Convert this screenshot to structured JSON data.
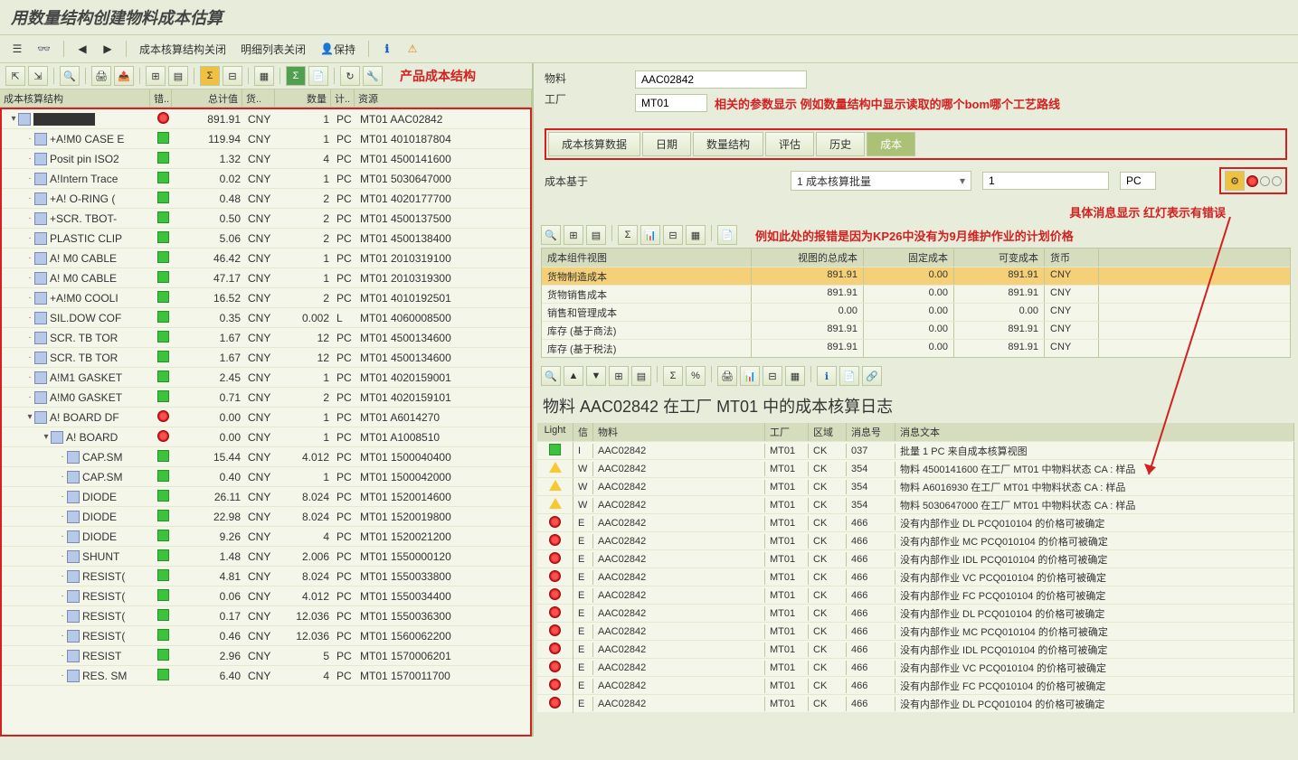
{
  "title": "用数量结构创建物料成本估算",
  "toolbar": {
    "close_struct": "成本核算结构关闭",
    "close_detail": "明细列表关闭",
    "hold": "保持"
  },
  "red_labels": {
    "product_struct": "产品成本结构",
    "param_note": "相关的参数显示 例如数量结构中显示读取的哪个bom哪个工艺路线",
    "msg_header": "具体消息显示 红灯表示有错误",
    "msg_detail": "例如此处的报错是因为KP26中没有为9月维护作业的计划价格"
  },
  "tree_columns": {
    "struct": "成本核算结构",
    "err": "错..",
    "total": "总计值",
    "curr": "货..",
    "qty": "数量",
    "unit": "计..",
    "res": "资源"
  },
  "tree_rows": [
    {
      "ind": 0,
      "exp": "▾",
      "name": "████████",
      "st": "red",
      "val": "891.91",
      "cur": "CNY",
      "qty": "1",
      "u": "PC",
      "res": "MT01 AAC02842"
    },
    {
      "ind": 1,
      "exp": "",
      "name": "+A!M0 CASE E",
      "st": "green",
      "val": "119.94",
      "cur": "CNY",
      "qty": "1",
      "u": "PC",
      "res": "MT01 4010187804"
    },
    {
      "ind": 1,
      "exp": "",
      "name": "Posit pin ISO2",
      "st": "green",
      "val": "1.32",
      "cur": "CNY",
      "qty": "4",
      "u": "PC",
      "res": "MT01 4500141600"
    },
    {
      "ind": 1,
      "exp": "",
      "name": "A!Intern Trace",
      "st": "green",
      "val": "0.02",
      "cur": "CNY",
      "qty": "1",
      "u": "PC",
      "res": "MT01 5030647000"
    },
    {
      "ind": 1,
      "exp": "",
      "name": "+A! O-RING (",
      "st": "green",
      "val": "0.48",
      "cur": "CNY",
      "qty": "2",
      "u": "PC",
      "res": "MT01 4020177700"
    },
    {
      "ind": 1,
      "exp": "",
      "name": "+SCR. TBOT-",
      "st": "green",
      "val": "0.50",
      "cur": "CNY",
      "qty": "2",
      "u": "PC",
      "res": "MT01 4500137500"
    },
    {
      "ind": 1,
      "exp": "",
      "name": "PLASTIC CLIP",
      "st": "green",
      "val": "5.06",
      "cur": "CNY",
      "qty": "2",
      "u": "PC",
      "res": "MT01 4500138400"
    },
    {
      "ind": 1,
      "exp": "",
      "name": "A! M0 CABLE",
      "st": "green",
      "val": "46.42",
      "cur": "CNY",
      "qty": "1",
      "u": "PC",
      "res": "MT01 2010319100"
    },
    {
      "ind": 1,
      "exp": "",
      "name": "A! M0 CABLE",
      "st": "green",
      "val": "47.17",
      "cur": "CNY",
      "qty": "1",
      "u": "PC",
      "res": "MT01 2010319300"
    },
    {
      "ind": 1,
      "exp": "",
      "name": "+A!M0 COOLI",
      "st": "green",
      "val": "16.52",
      "cur": "CNY",
      "qty": "2",
      "u": "PC",
      "res": "MT01 4010192501"
    },
    {
      "ind": 1,
      "exp": "",
      "name": "SIL.DOW COF",
      "st": "green",
      "val": "0.35",
      "cur": "CNY",
      "qty": "0.002",
      "u": "L",
      "res": "MT01 4060008500"
    },
    {
      "ind": 1,
      "exp": "",
      "name": "SCR. TB TOR",
      "st": "green",
      "val": "1.67",
      "cur": "CNY",
      "qty": "12",
      "u": "PC",
      "res": "MT01 4500134600"
    },
    {
      "ind": 1,
      "exp": "",
      "name": "SCR. TB TOR",
      "st": "green",
      "val": "1.67",
      "cur": "CNY",
      "qty": "12",
      "u": "PC",
      "res": "MT01 4500134600"
    },
    {
      "ind": 1,
      "exp": "",
      "name": "A!M1 GASKET",
      "st": "green",
      "val": "2.45",
      "cur": "CNY",
      "qty": "1",
      "u": "PC",
      "res": "MT01 4020159001"
    },
    {
      "ind": 1,
      "exp": "",
      "name": "A!M0 GASKET",
      "st": "green",
      "val": "0.71",
      "cur": "CNY",
      "qty": "2",
      "u": "PC",
      "res": "MT01 4020159101"
    },
    {
      "ind": 1,
      "exp": "▾",
      "name": "A! BOARD  DF",
      "st": "red",
      "val": "0.00",
      "cur": "CNY",
      "qty": "1",
      "u": "PC",
      "res": "MT01 A6014270"
    },
    {
      "ind": 2,
      "exp": "▾",
      "name": "A! BOARD",
      "st": "red",
      "val": "0.00",
      "cur": "CNY",
      "qty": "1",
      "u": "PC",
      "res": "MT01 A1008510"
    },
    {
      "ind": 3,
      "exp": "",
      "name": "CAP.SM",
      "st": "green",
      "val": "15.44",
      "cur": "CNY",
      "qty": "4.012",
      "u": "PC",
      "res": "MT01 1500040400"
    },
    {
      "ind": 3,
      "exp": "",
      "name": "CAP.SM",
      "st": "green",
      "val": "0.40",
      "cur": "CNY",
      "qty": "1",
      "u": "PC",
      "res": "MT01 1500042000"
    },
    {
      "ind": 3,
      "exp": "",
      "name": "DIODE",
      "st": "green",
      "val": "26.11",
      "cur": "CNY",
      "qty": "8.024",
      "u": "PC",
      "res": "MT01 1520014600"
    },
    {
      "ind": 3,
      "exp": "",
      "name": "DIODE",
      "st": "green",
      "val": "22.98",
      "cur": "CNY",
      "qty": "8.024",
      "u": "PC",
      "res": "MT01 1520019800"
    },
    {
      "ind": 3,
      "exp": "",
      "name": "DIODE",
      "st": "green",
      "val": "9.26",
      "cur": "CNY",
      "qty": "4",
      "u": "PC",
      "res": "MT01 1520021200"
    },
    {
      "ind": 3,
      "exp": "",
      "name": "SHUNT",
      "st": "green",
      "val": "1.48",
      "cur": "CNY",
      "qty": "2.006",
      "u": "PC",
      "res": "MT01 1550000120"
    },
    {
      "ind": 3,
      "exp": "",
      "name": "RESIST(",
      "st": "green",
      "val": "4.81",
      "cur": "CNY",
      "qty": "8.024",
      "u": "PC",
      "res": "MT01 1550033800"
    },
    {
      "ind": 3,
      "exp": "",
      "name": "RESIST(",
      "st": "green",
      "val": "0.06",
      "cur": "CNY",
      "qty": "4.012",
      "u": "PC",
      "res": "MT01 1550034400"
    },
    {
      "ind": 3,
      "exp": "",
      "name": "RESIST(",
      "st": "green",
      "val": "0.17",
      "cur": "CNY",
      "qty": "12.036",
      "u": "PC",
      "res": "MT01 1550036300"
    },
    {
      "ind": 3,
      "exp": "",
      "name": "RESIST(",
      "st": "green",
      "val": "0.46",
      "cur": "CNY",
      "qty": "12.036",
      "u": "PC",
      "res": "MT01 1560062200"
    },
    {
      "ind": 3,
      "exp": "",
      "name": "RESIST",
      "st": "green",
      "val": "2.96",
      "cur": "CNY",
      "qty": "5",
      "u": "PC",
      "res": "MT01 1570006201"
    },
    {
      "ind": 3,
      "exp": "",
      "name": "RES. SM",
      "st": "green",
      "val": "6.40",
      "cur": "CNY",
      "qty": "4",
      "u": "PC",
      "res": "MT01 1570011700"
    }
  ],
  "header_fields": {
    "material_label": "物料",
    "material_value": "AAC02842",
    "plant_label": "工厂",
    "plant_value": "MT01"
  },
  "tabs": [
    "成本核算数据",
    "日期",
    "数量结构",
    "评估",
    "历史",
    "成本"
  ],
  "active_tab": 5,
  "cost_basis": {
    "label": "成本基于",
    "option": "1 成本核算批量",
    "qty": "1",
    "unit": "PC"
  },
  "cost_table": {
    "columns": {
      "name": "成本组件视图",
      "total": "视图的总成本",
      "fixed": "固定成本",
      "var": "可变成本",
      "curr": "货币"
    },
    "rows": [
      {
        "name": "货物制造成本",
        "total": "891.91",
        "fixed": "0.00",
        "var": "891.91",
        "curr": "CNY",
        "hl": true
      },
      {
        "name": "货物销售成本",
        "total": "891.91",
        "fixed": "0.00",
        "var": "891.91",
        "curr": "CNY"
      },
      {
        "name": "销售和管理成本",
        "total": "0.00",
        "fixed": "0.00",
        "var": "0.00",
        "curr": "CNY"
      },
      {
        "name": "库存 (基于商法)",
        "total": "891.91",
        "fixed": "0.00",
        "var": "891.91",
        "curr": "CNY"
      },
      {
        "name": "库存 (基于税法)",
        "total": "891.91",
        "fixed": "0.00",
        "var": "891.91",
        "curr": "CNY"
      }
    ]
  },
  "log_title": "物料 AAC02842 在工厂 MT01 中的成本核算日志",
  "log_columns": {
    "light": "Light",
    "type": "信",
    "mat": "物料",
    "plant": "工厂",
    "area": "区域",
    "msgno": "消息号",
    "text": "消息文本"
  },
  "log_rows": [
    {
      "st": "green",
      "t": "I",
      "mat": "AAC02842",
      "p": "MT01",
      "a": "CK",
      "n": "037",
      "txt": "批量 1 PC 来自成本核算视图"
    },
    {
      "st": "yellow",
      "t": "W",
      "mat": "AAC02842",
      "p": "MT01",
      "a": "CK",
      "n": "354",
      "txt": "物料 4500141600 在工厂 MT01 中物料状态 CA : 样品"
    },
    {
      "st": "yellow",
      "t": "W",
      "mat": "AAC02842",
      "p": "MT01",
      "a": "CK",
      "n": "354",
      "txt": "物料 A6016930 在工厂 MT01 中物料状态 CA : 样品"
    },
    {
      "st": "yellow",
      "t": "W",
      "mat": "AAC02842",
      "p": "MT01",
      "a": "CK",
      "n": "354",
      "txt": "物料 5030647000 在工厂 MT01 中物料状态 CA : 样品"
    },
    {
      "st": "red",
      "t": "E",
      "mat": "AAC02842",
      "p": "MT01",
      "a": "CK",
      "n": "466",
      "txt": "没有内部作业 DL PCQ010104 的价格可被确定"
    },
    {
      "st": "red",
      "t": "E",
      "mat": "AAC02842",
      "p": "MT01",
      "a": "CK",
      "n": "466",
      "txt": "没有内部作业 MC PCQ010104 的价格可被确定"
    },
    {
      "st": "red",
      "t": "E",
      "mat": "AAC02842",
      "p": "MT01",
      "a": "CK",
      "n": "466",
      "txt": "没有内部作业 IDL PCQ010104 的价格可被确定"
    },
    {
      "st": "red",
      "t": "E",
      "mat": "AAC02842",
      "p": "MT01",
      "a": "CK",
      "n": "466",
      "txt": "没有内部作业 VC PCQ010104 的价格可被确定"
    },
    {
      "st": "red",
      "t": "E",
      "mat": "AAC02842",
      "p": "MT01",
      "a": "CK",
      "n": "466",
      "txt": "没有内部作业 FC PCQ010104 的价格可被确定"
    },
    {
      "st": "red",
      "t": "E",
      "mat": "AAC02842",
      "p": "MT01",
      "a": "CK",
      "n": "466",
      "txt": "没有内部作业 DL PCQ010104 的价格可被确定"
    },
    {
      "st": "red",
      "t": "E",
      "mat": "AAC02842",
      "p": "MT01",
      "a": "CK",
      "n": "466",
      "txt": "没有内部作业 MC PCQ010104 的价格可被确定"
    },
    {
      "st": "red",
      "t": "E",
      "mat": "AAC02842",
      "p": "MT01",
      "a": "CK",
      "n": "466",
      "txt": "没有内部作业 IDL PCQ010104 的价格可被确定"
    },
    {
      "st": "red",
      "t": "E",
      "mat": "AAC02842",
      "p": "MT01",
      "a": "CK",
      "n": "466",
      "txt": "没有内部作业 VC PCQ010104 的价格可被确定"
    },
    {
      "st": "red",
      "t": "E",
      "mat": "AAC02842",
      "p": "MT01",
      "a": "CK",
      "n": "466",
      "txt": "没有内部作业 FC PCQ010104 的价格可被确定"
    },
    {
      "st": "red",
      "t": "E",
      "mat": "AAC02842",
      "p": "MT01",
      "a": "CK",
      "n": "466",
      "txt": "没有内部作业 DL PCQ010104 的价格可被确定"
    }
  ],
  "colors": {
    "bg": "#e8eddb",
    "border": "#bbc9a0",
    "header_bg": "#d6ddbf",
    "row_bg": "#f3f6e9",
    "highlight": "#f5d078",
    "red": "#d32020",
    "active_tab": "#aac176"
  }
}
